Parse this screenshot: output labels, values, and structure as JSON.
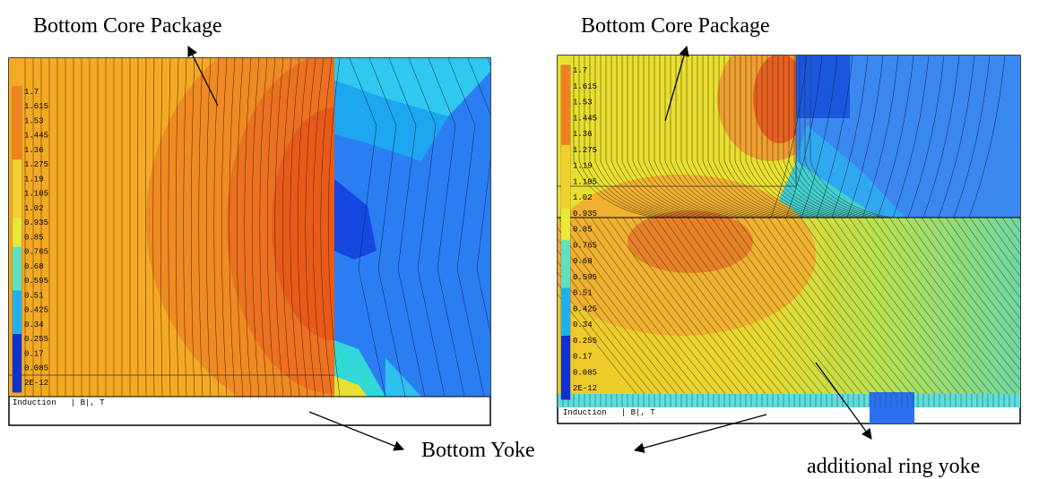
{
  "annotations": {
    "top_left": "Bottom Core Package",
    "top_right": "Bottom Core Package",
    "bottom_yoke": "Bottom Yoke",
    "ring_yoke": "additional ring yoke"
  },
  "panels": [
    {
      "legend": [
        "1.7",
        "1.615",
        "1.53",
        "1.445",
        "1.36",
        "1.275",
        "1.19",
        "1.105",
        "1.02",
        "0.935",
        "0.85",
        "0.765",
        "0.68",
        "0.595",
        "0.51",
        "0.425",
        "0.34",
        "0.255",
        "0.17",
        "0.085",
        "2E-12"
      ],
      "caption": "Induction   | B|, T"
    },
    {
      "legend": [
        "1.7",
        "1.615",
        "1.53",
        "1.445",
        "1.36",
        "1.275",
        "1.19",
        "1.105",
        "1.02",
        "0.935",
        "0.85",
        "0.765",
        "0.68",
        "0.595",
        "0.51",
        "0.425",
        "0.34",
        "0.255",
        "0.17",
        "0.085",
        "2E-12"
      ],
      "caption": "Induction   | B|, T"
    }
  ]
}
